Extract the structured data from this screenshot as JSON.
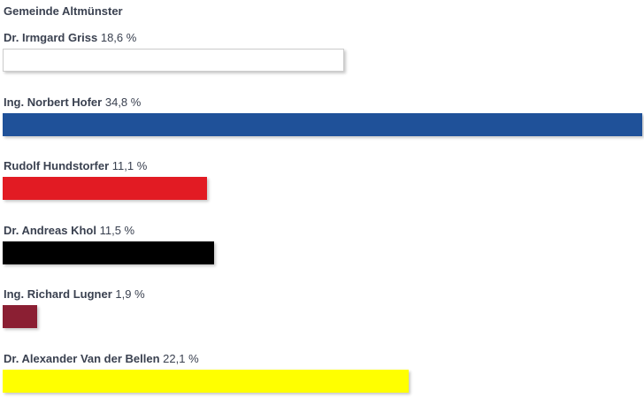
{
  "chart_data": {
    "type": "bar",
    "orientation": "horizontal",
    "title": "Gemeinde Altmünster",
    "unit": "%",
    "categories": [
      "Dr. Irmgard Griss",
      "Ing. Norbert Hofer",
      "Rudolf Hundstorfer",
      "Dr. Andreas Khol",
      "Ing. Richard Lugner",
      "Dr. Alexander Van der Bellen"
    ],
    "values": [
      18.6,
      34.8,
      11.1,
      11.5,
      1.9,
      22.1
    ],
    "value_labels": [
      "18,6 %",
      "34,8 %",
      "11,1 %",
      "11,5 %",
      "1,9 %",
      "22,1 %"
    ],
    "colors": [
      "#ffffff",
      "#1f5199",
      "#e21b23",
      "#000000",
      "#8b1f33",
      "#ffff00"
    ],
    "border_colors": [
      "#cccccc",
      "",
      "",
      "",
      "",
      ""
    ],
    "xlim": [
      0,
      34.8
    ],
    "grid": false,
    "legend": "none"
  }
}
